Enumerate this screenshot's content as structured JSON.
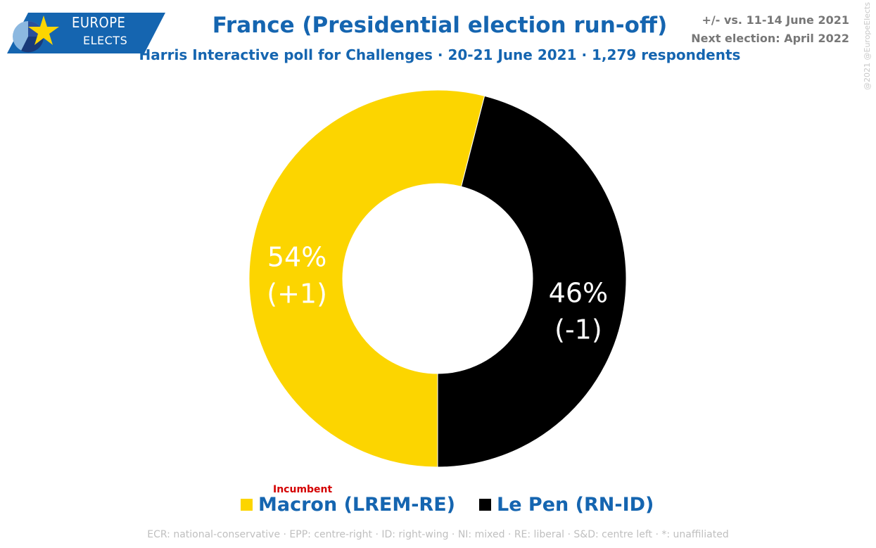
{
  "logo": {
    "line1": "EUROPE",
    "line2": "ELECTS"
  },
  "header": {
    "title": "France (Presidential election run-off)",
    "subtitle": "Harris Interactive poll for Challenges · 20-21 June 2021 · 1,279 respondents",
    "change_note": "+/- vs. 11-14 June 2021",
    "next_election": "Next election: April 2022",
    "copyright": "@2021 @EuropeElects"
  },
  "chart_data": {
    "type": "pie",
    "series": [
      {
        "name": "Macron (LREM-RE)",
        "value": 54,
        "value_label": "54%",
        "change_label": "(+1)",
        "color": "#fcd500"
      },
      {
        "name": "Le Pen (RN-ID)",
        "value": 46,
        "value_label": "46%",
        "change_label": "(-1)",
        "color": "#000000"
      }
    ]
  },
  "legend": {
    "incumbent_tag": "Incumbent",
    "items": [
      {
        "label": "Macron (LREM-RE)",
        "color": "#fcd500"
      },
      {
        "label": "Le Pen (RN-ID)",
        "color": "#000000"
      }
    ]
  },
  "footer": {
    "glossary": "ECR: national-conservative · EPP: centre-right · ID: right-wing · NI: mixed · RE: liberal · S&D: centre left · *: unaffiliated"
  }
}
